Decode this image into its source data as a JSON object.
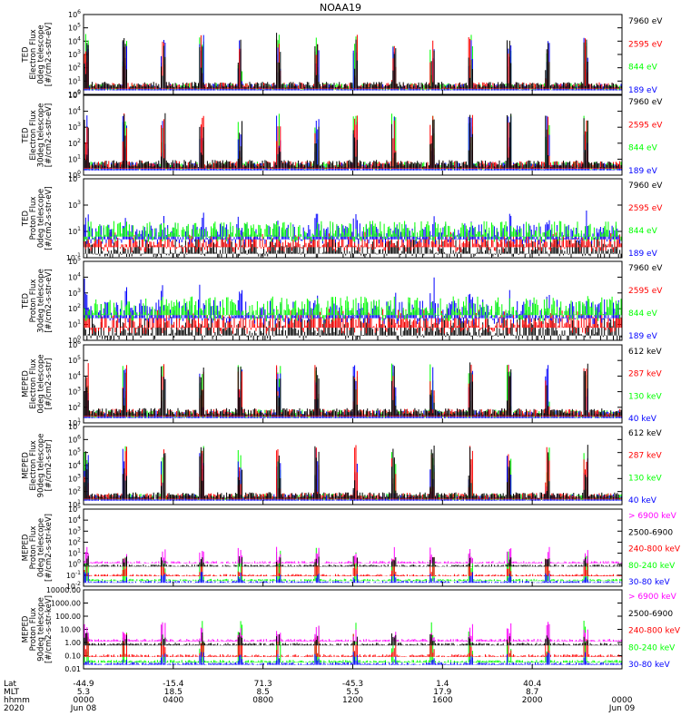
{
  "title": "NOAA19",
  "colors": {
    "black": "#000000",
    "red": "#ff0000",
    "green": "#00ff00",
    "blue": "#0000ff",
    "magenta": "#ff00ff"
  },
  "chart_data": [
    {
      "type": "line",
      "ylabel": [
        "TED",
        "Electron Flux",
        "0deg telescope",
        "[#/cm2-s-str-eV]"
      ],
      "ytick_labels": [
        "10^0",
        "10^1",
        "10^2",
        "10^3",
        "10^4",
        "10^5",
        "10^6"
      ],
      "ylim": [
        1,
        1000000
      ],
      "yscale": "log",
      "legend": [
        {
          "label": "7960 eV",
          "color": "#000000"
        },
        {
          "label": "2595 eV",
          "color": "#ff0000"
        },
        {
          "label": "844 eV",
          "color": "#00ff00"
        },
        {
          "label": "189 eV",
          "color": "#0000ff"
        }
      ]
    },
    {
      "type": "line",
      "ylabel": [
        "TED",
        "Electron Flux",
        "30deg telescope",
        "[#/cm2-s-str-eV]"
      ],
      "ytick_labels": [
        "10^0",
        "10^1",
        "10^2",
        "10^3",
        "10^4",
        "10^5"
      ],
      "ylim": [
        1,
        100000
      ],
      "yscale": "log",
      "legend": [
        {
          "label": "7960 eV",
          "color": "#000000"
        },
        {
          "label": "2595 eV",
          "color": "#ff0000"
        },
        {
          "label": "844 eV",
          "color": "#00ff00"
        },
        {
          "label": "189 eV",
          "color": "#0000ff"
        }
      ]
    },
    {
      "type": "line",
      "ylabel": [
        "TED",
        "Proton Flux",
        "0deg telescope",
        "[#/cm2-s-str-eV]"
      ],
      "ytick_labels": [
        "10^-1",
        "10^1",
        "10^3",
        "10^5"
      ],
      "ylim": [
        0.1,
        100000
      ],
      "yscale": "log",
      "legend": [
        {
          "label": "7960 eV",
          "color": "#000000"
        },
        {
          "label": "2595 eV",
          "color": "#ff0000"
        },
        {
          "label": "844 eV",
          "color": "#00ff00"
        },
        {
          "label": "189 eV",
          "color": "#0000ff"
        }
      ]
    },
    {
      "type": "line",
      "ylabel": [
        "TED",
        "Proton Flux",
        "30deg telescope",
        "[#/cm2-s-str-eV]"
      ],
      "ytick_labels": [
        "10^0",
        "10^1",
        "10^2",
        "10^3",
        "10^4",
        "10^5"
      ],
      "ylim": [
        1,
        100000
      ],
      "yscale": "log",
      "legend": [
        {
          "label": "7960 eV",
          "color": "#000000"
        },
        {
          "label": "2595 eV",
          "color": "#ff0000"
        },
        {
          "label": "844 eV",
          "color": "#00ff00"
        },
        {
          "label": "189 eV",
          "color": "#0000ff"
        }
      ]
    },
    {
      "type": "line",
      "ylabel": [
        "MEPED",
        "Electron Flux",
        "0deg telescope",
        "[#/cm2-s-str]"
      ],
      "ytick_labels": [
        "10^1",
        "10^2",
        "10^3",
        "10^4",
        "10^5",
        "10^6"
      ],
      "ylim": [
        10,
        1000000
      ],
      "yscale": "log",
      "legend": [
        {
          "label": "612 keV",
          "color": "#000000"
        },
        {
          "label": "287 keV",
          "color": "#ff0000"
        },
        {
          "label": "130 keV",
          "color": "#00ff00"
        },
        {
          "label": "40 keV",
          "color": "#0000ff"
        }
      ]
    },
    {
      "type": "line",
      "ylabel": [
        "MEPED",
        "Electron Flux",
        "90deg telescope",
        "[#/cm2-s-str]"
      ],
      "ytick_labels": [
        "10^1",
        "10^2",
        "10^3",
        "10^4",
        "10^5",
        "10^6",
        "10^7"
      ],
      "ylim": [
        10,
        10000000
      ],
      "yscale": "log",
      "legend": [
        {
          "label": "612 keV",
          "color": "#000000"
        },
        {
          "label": "287 keV",
          "color": "#ff0000"
        },
        {
          "label": "130 keV",
          "color": "#00ff00"
        },
        {
          "label": "40 keV",
          "color": "#0000ff"
        }
      ]
    },
    {
      "type": "line",
      "ylabel": [
        "MEPED",
        "Proton Flux",
        "0deg telescope",
        "[#/cm2-s-str-keV]"
      ],
      "ytick_labels": [
        "10^-2",
        "10^-1",
        "10^0",
        "10^1",
        "10^2",
        "10^3",
        "10^4",
        "10^5"
      ],
      "ylim": [
        0.01,
        100000
      ],
      "yscale": "log",
      "legend": [
        {
          "label": "> 6900 keV",
          "color": "#ff00ff"
        },
        {
          "label": "2500-6900",
          "color": "#000000"
        },
        {
          "label": "240-800 keV",
          "color": "#ff0000"
        },
        {
          "label": "80-240 keV",
          "color": "#00ff00"
        },
        {
          "label": "30-80 keV",
          "color": "#0000ff"
        }
      ]
    },
    {
      "type": "line",
      "ylabel": [
        "MEPED",
        "Proton Flux",
        "90deg telescope",
        "[#/cm2-s-str-keV]"
      ],
      "ytick_labels": [
        "0.01",
        "0.10",
        "1.00",
        "10.00",
        "100.00",
        "1000.00",
        "10000.00"
      ],
      "ylim": [
        0.01,
        10000
      ],
      "yscale": "log",
      "legend": [
        {
          "label": "> 6900 keV",
          "color": "#ff00ff"
        },
        {
          "label": "2500-6900",
          "color": "#000000"
        },
        {
          "label": "240-800 keV",
          "color": "#ff0000"
        },
        {
          "label": "80-240 keV",
          "color": "#00ff00"
        },
        {
          "label": "30-80 keV",
          "color": "#0000ff"
        }
      ]
    }
  ],
  "x_axis": {
    "row_labels": [
      "Lat",
      "MLT",
      "hhmm",
      "2020"
    ],
    "ticks": [
      {
        "values": [
          "-44.9",
          "5.3",
          "0000",
          "Jun 08"
        ]
      },
      {
        "values": [
          "-15.4",
          "18.5",
          "0400",
          ""
        ]
      },
      {
        "values": [
          "71.3",
          "8.5",
          "0800",
          ""
        ]
      },
      {
        "values": [
          "-45.3",
          "5.5",
          "1200",
          ""
        ]
      },
      {
        "values": [
          "1.4",
          "17.9",
          "1600",
          ""
        ]
      },
      {
        "values": [
          "40.4",
          "8.7",
          "2000",
          ""
        ]
      },
      {
        "values": [
          "",
          "",
          "0000",
          "Jun 09"
        ]
      }
    ]
  }
}
